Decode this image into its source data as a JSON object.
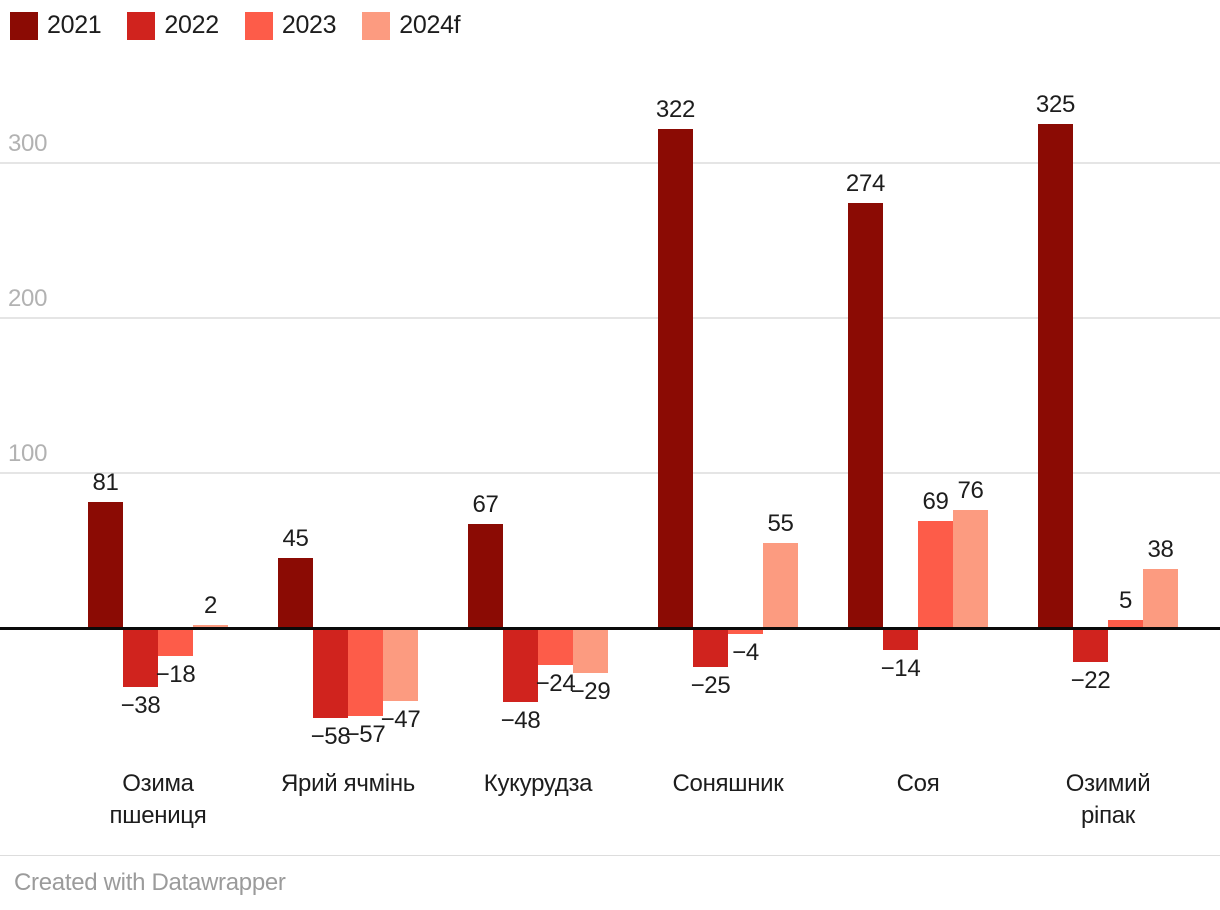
{
  "chart_data": {
    "type": "bar",
    "title": "",
    "xlabel": "",
    "ylabel": "",
    "categories": [
      "Озима\nпшениця",
      "Ярий ячмінь",
      "Кукурудза",
      "Соняшник",
      "Соя",
      "Озимий ріпак"
    ],
    "series": [
      {
        "name": "2021",
        "color": "#8b0b04",
        "values": [
          81,
          45,
          67,
          322,
          274,
          325
        ]
      },
      {
        "name": "2022",
        "color": "#d0231e",
        "values": [
          -38,
          -58,
          -48,
          -25,
          -14,
          -22
        ]
      },
      {
        "name": "2023",
        "color": "#fd5c49",
        "values": [
          -18,
          -57,
          -24,
          -4,
          69,
          5
        ]
      },
      {
        "name": "2024f",
        "color": "#fc9b80",
        "values": [
          2,
          -47,
          -29,
          55,
          76,
          38
        ]
      }
    ],
    "yticks": [
      100,
      200,
      300
    ],
    "ylim": [
      -80,
      340
    ],
    "grid": true,
    "legend_position": "top-left",
    "negative_value_prefix": "−"
  },
  "footer": {
    "credit": "Created with Datawrapper"
  }
}
